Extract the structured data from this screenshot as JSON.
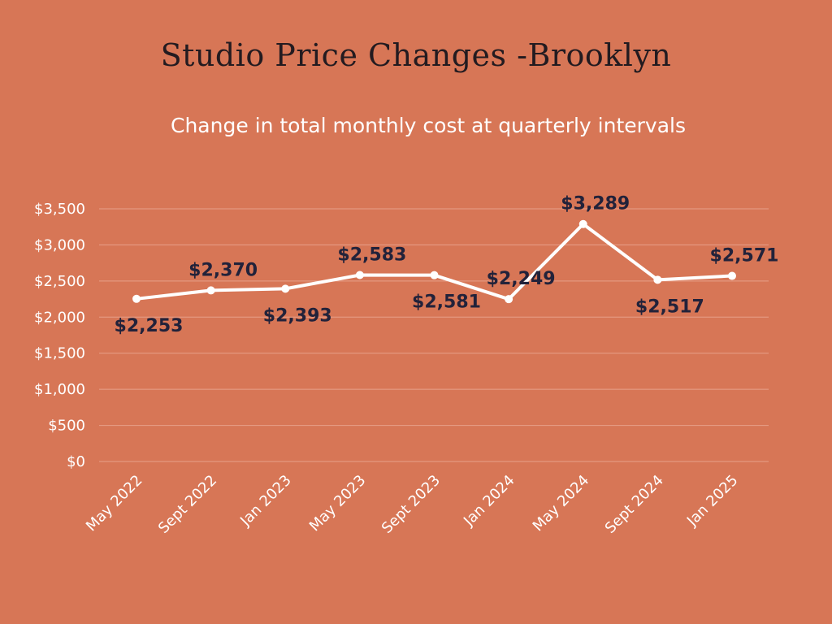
{
  "chart_data": {
    "type": "line",
    "title": "Studio Price Changes -Brooklyn",
    "subtitle": "Change in total monthly cost at quarterly intervals",
    "categories": [
      "May 2022",
      "Sept 2022",
      "Jan 2023",
      "May 2023",
      "Sept 2023",
      "Jan 2024",
      "May 2024",
      "Sept 2024",
      "Jan 2025"
    ],
    "values": [
      2253,
      2370,
      2393,
      2583,
      2581,
      2249,
      3289,
      2517,
      2571
    ],
    "data_labels": [
      "$2,253",
      "$2,370",
      "$2,393",
      "$2,583",
      "$2,581",
      "$2,249",
      "$3,289",
      "$2,517",
      "$2,571"
    ],
    "data_label_positions": [
      "below",
      "above",
      "below",
      "above",
      "below",
      "above",
      "above",
      "below",
      "above"
    ],
    "y_ticks": [
      0,
      500,
      1000,
      1500,
      2000,
      2500,
      3000,
      3500
    ],
    "y_tick_labels": [
      "$0",
      "$500",
      "$1,000",
      "$1,500",
      "$2,000",
      "$2,500",
      "$3,000",
      "$3,500"
    ],
    "ylim": [
      0,
      3500
    ],
    "grid": true,
    "colors": {
      "background": "#D77656",
      "line": "#FFFFFF",
      "grid": "#E7A08A",
      "title": "#231B20",
      "data_label": "#22223A"
    }
  }
}
